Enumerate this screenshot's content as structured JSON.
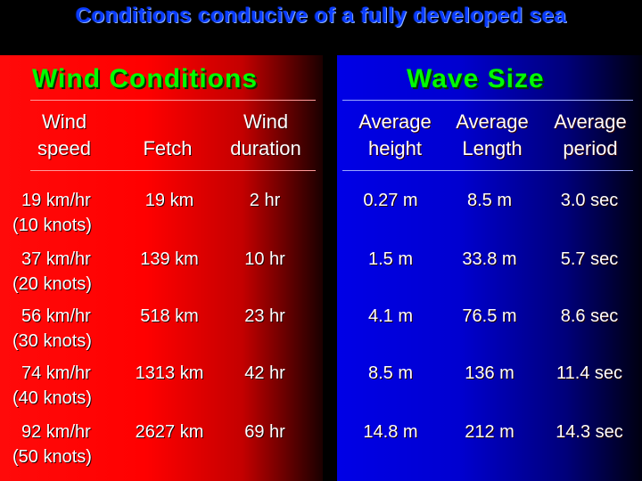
{
  "title": "Conditions conducive of a fully developed sea",
  "sections": {
    "wind": "Wind Conditions",
    "wave": "Wave Size"
  },
  "headers": {
    "wind_speed": "Wind speed",
    "fetch": "Fetch",
    "wind_duration": "Wind duration",
    "avg_height": "Average height",
    "avg_length": "Average Length",
    "avg_period": "Average period"
  },
  "rows": [
    {
      "speed": "19 km/hr",
      "knots": "(10 knots)",
      "fetch": "19 km",
      "duration": "2 hr",
      "height": "0.27 m",
      "length": "8.5 m",
      "period": "3.0 sec"
    },
    {
      "speed": "37 km/hr",
      "knots": "(20 knots)",
      "fetch": "139 km",
      "duration": "10 hr",
      "height": "1.5 m",
      "length": "33.8 m",
      "period": "5.7 sec"
    },
    {
      "speed": "56 km/hr",
      "knots": "(30 knots)",
      "fetch": "518 km",
      "duration": "23 hr",
      "height": "4.1 m",
      "length": "76.5 m",
      "period": "8.6 sec"
    },
    {
      "speed": "74 km/hr",
      "knots": "(40 knots)",
      "fetch": "1313 km",
      "duration": "42 hr",
      "height": "8.5 m",
      "length": "136 m",
      "period": "11.4 sec"
    },
    {
      "speed": "92 km/hr",
      "knots": "(50 knots)",
      "fetch": "2627 km",
      "duration": "69 hr",
      "height": "14.8 m",
      "length": "212 m",
      "period": "14.3 sec"
    }
  ]
}
